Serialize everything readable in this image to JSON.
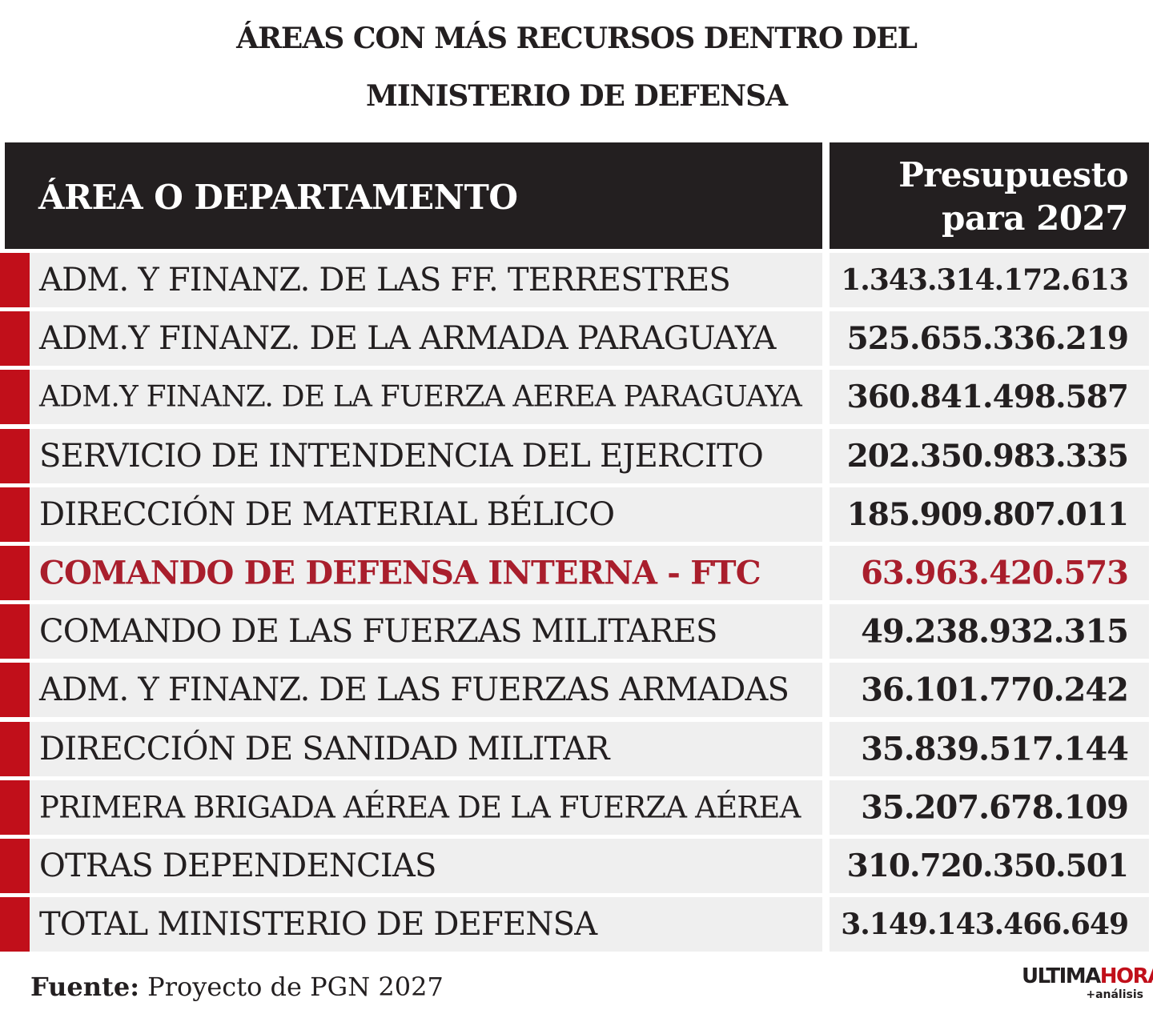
{
  "title": {
    "line1": "ÁREAS CON MÁS RECURSOS DENTRO DEL",
    "line2": "MINISTERIO DE DEFENSA"
  },
  "header": {
    "area": "ÁREA O DEPARTAMENTO",
    "budget_line1": "Presupuesto",
    "budget_line2": "para 2027"
  },
  "colors": {
    "accent": "#c10f1a",
    "highlight_text": "#a91e2c",
    "header_bg": "#231f20",
    "row_bg": "#efefef"
  },
  "chart_data": {
    "type": "table",
    "columns": [
      "ÁREA O DEPARTAMENTO",
      "Presupuesto para 2027"
    ],
    "highlighted_row": 5,
    "rows": [
      {
        "area": "ADM. Y FINANZ. DE LAS FF. TERRESTRES",
        "budget": "1.343.314.172.613"
      },
      {
        "area": "ADM.Y FINANZ. DE LA ARMADA PARAGUAYA",
        "budget": "525.655.336.219"
      },
      {
        "area": "ADM.Y FINANZ. DE LA FUERZA AEREA PARAGUAYA",
        "budget": "360.841.498.587"
      },
      {
        "area": "SERVICIO DE INTENDENCIA DEL EJERCITO",
        "budget": "202.350.983.335"
      },
      {
        "area": "DIRECCIÓN DE MATERIAL BÉLICO",
        "budget": "185.909.807.011"
      },
      {
        "area": "COMANDO DE DEFENSA INTERNA - FTC",
        "budget": "63.963.420.573"
      },
      {
        "area": "COMANDO DE LAS FUERZAS MILITARES",
        "budget": "49.238.932.315"
      },
      {
        "area": "ADM. Y FINANZ. DE LAS FUERZAS ARMADAS",
        "budget": "36.101.770.242"
      },
      {
        "area": "DIRECCIÓN DE SANIDAD MILITAR",
        "budget": "35.839.517.144"
      },
      {
        "area": "PRIMERA BRIGADA AÉREA DE LA FUERZA AÉREA",
        "budget": "35.207.678.109"
      },
      {
        "area": "OTRAS DEPENDENCIAS",
        "budget": "310.720.350.501"
      },
      {
        "area": "TOTAL MINISTERIO DE DEFENSA",
        "budget": "3.149.143.466.649"
      }
    ]
  },
  "footer": {
    "label": "Fuente:",
    "text": " Proyecto de PGN 2027"
  },
  "logo": {
    "part1": "ULTIMA",
    "part2": "HORA",
    "sub": "+análisis"
  }
}
